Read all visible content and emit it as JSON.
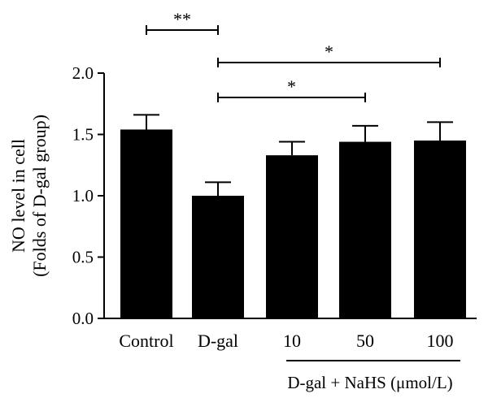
{
  "chart_data": {
    "type": "bar",
    "categories": [
      "Control",
      "D-gal",
      "10",
      "50",
      "100"
    ],
    "values": [
      1.54,
      1.0,
      1.33,
      1.44,
      1.45
    ],
    "errors": [
      0.12,
      0.11,
      0.11,
      0.13,
      0.15
    ],
    "ylabel_line1": "NO level in cell",
    "ylabel_line2": "(Folds of D-gal group)",
    "ylim": [
      0,
      2.0
    ],
    "yticks": [
      "0.0",
      "0.5",
      "1.0",
      "1.5",
      "2.0"
    ],
    "ytick_values": [
      0,
      0.5,
      1.0,
      1.5,
      2.0
    ],
    "group_label": "D-gal + NaHS (μmol/L)",
    "significance": [
      {
        "from": 0,
        "to": 1,
        "label": "**"
      },
      {
        "from": 1,
        "to": 4,
        "label": "*"
      },
      {
        "from": 1,
        "to": 3,
        "label": "*"
      }
    ],
    "bar_color": "#000000"
  }
}
